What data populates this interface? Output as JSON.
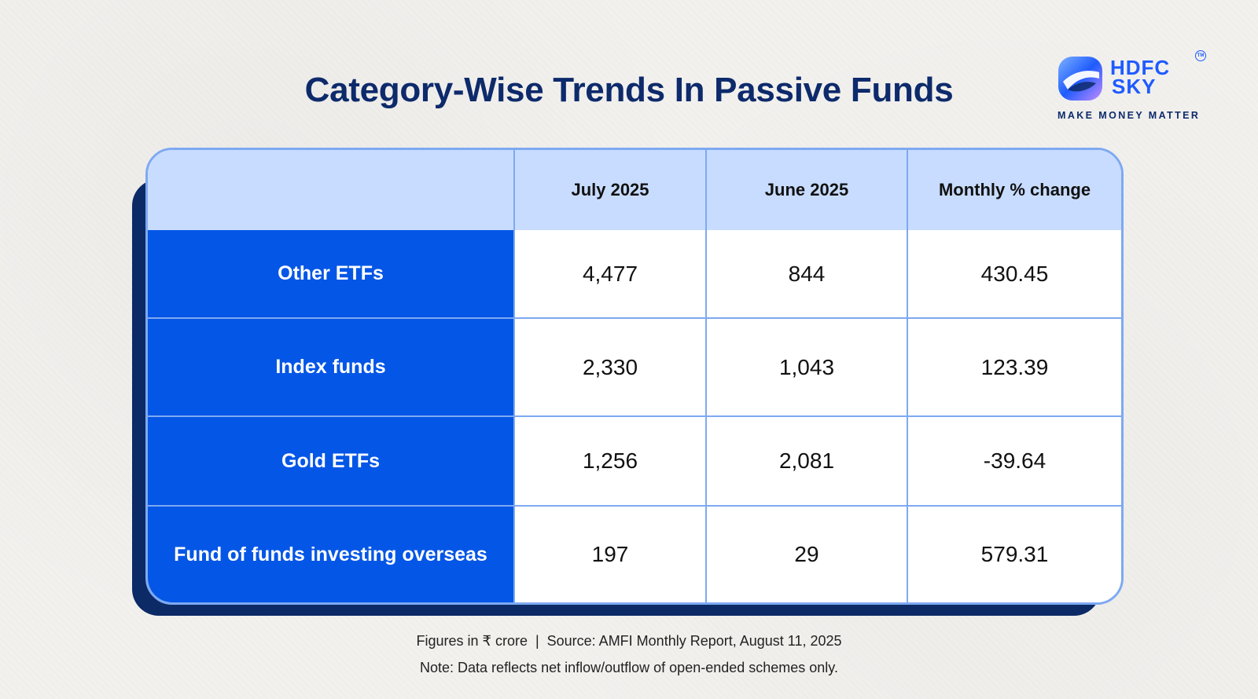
{
  "title": "Category-Wise Trends In Passive Funds",
  "logo": {
    "wordmark_line1": "HDFC",
    "wordmark_line2": "SKY",
    "trademark": "TM",
    "tagline": "MAKE MONEY MATTER",
    "icon": "hdfc-sky-logo-icon"
  },
  "chart_data": {
    "type": "table",
    "columns": [
      "",
      "July 2025",
      "June 2025",
      "Monthly % change"
    ],
    "rows": [
      {
        "label": "Other ETFs",
        "july_2025": "4,477",
        "june_2025": "844",
        "monthly_pct_change": "430.45"
      },
      {
        "label": "Index funds",
        "july_2025": "2,330",
        "june_2025": "1,043",
        "monthly_pct_change": "123.39"
      },
      {
        "label": "Gold ETFs",
        "july_2025": "1,256",
        "june_2025": "2,081",
        "monthly_pct_change": "-39.64"
      },
      {
        "label": "Fund of funds investing overseas",
        "july_2025": "197",
        "june_2025": "29",
        "monthly_pct_change": "579.31"
      }
    ]
  },
  "footer": {
    "source_line": "Figures in ₹ crore  |  Source: AMFI Monthly Report, August 11, 2025",
    "note_line": "Note: Data reflects net inflow/outflow of open-ended schemes only."
  },
  "colors": {
    "title": "#0d2a6b",
    "header_bg": "#c8dcff",
    "row_label_bg": "#0456e6",
    "border": "#7ea9f2",
    "shadow_card": "#0b2a66",
    "brand_blue": "#1e5bff"
  }
}
